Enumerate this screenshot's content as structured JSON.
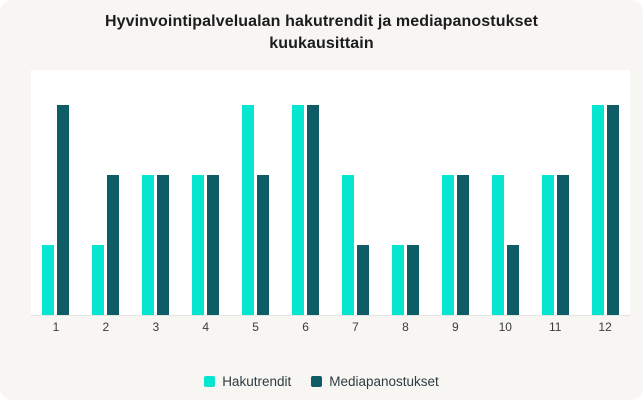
{
  "card": {
    "background": "#F8F6F3",
    "plot_background": "#FFFFFF",
    "baseline_color": "#E4E4E2"
  },
  "chart_data": {
    "type": "bar",
    "title": "Hyvinvointipalvelualan hakutrendit ja mediapanostukset kuukausittain",
    "categories": [
      "1",
      "2",
      "3",
      "4",
      "5",
      "6",
      "7",
      "8",
      "9",
      "10",
      "11",
      "12"
    ],
    "series": [
      {
        "name": "Hakutrendit",
        "color": "#05E5CF",
        "values": [
          1,
          1,
          2,
          2,
          3,
          3,
          2,
          1,
          2,
          2,
          2,
          3
        ]
      },
      {
        "name": "Mediapanostukset",
        "color": "#0E5C66",
        "values": [
          3,
          2,
          2,
          2,
          2,
          3,
          1,
          1,
          2,
          1,
          2,
          3
        ]
      }
    ],
    "xlabel": "",
    "ylabel": "",
    "ylim": [
      0,
      3.5
    ],
    "grid": false,
    "y_axis_visible": false,
    "legend_position": "bottom"
  }
}
